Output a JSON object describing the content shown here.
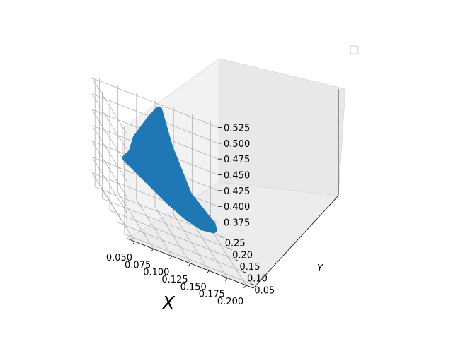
{
  "chart_data": {
    "type": "scatter",
    "projection": "3d",
    "title": "",
    "xlabel": "X",
    "ylabel": "Y",
    "zlabel": "",
    "xlim": [
      0.04,
      0.21
    ],
    "ylim": [
      0.03,
      0.27
    ],
    "zlim": [
      0.36,
      0.53
    ],
    "xticks": [
      "0.050",
      "0.075",
      "0.100",
      "0.125",
      "0.150",
      "0.175",
      "0.200"
    ],
    "yticks": [
      "0.05",
      "0.10",
      "0.15",
      "0.20",
      "0.25"
    ],
    "zticks": [
      "0.375",
      "0.400",
      "0.425",
      "0.450",
      "0.475",
      "0.500",
      "0.525"
    ],
    "series": [
      {
        "color": "#1f77b4",
        "description_points": [
          {
            "x": 0.05,
            "y": 0.09,
            "z": 0.47
          },
          {
            "x": 0.06,
            "y": 0.1,
            "z": 0.48
          },
          {
            "x": 0.07,
            "y": 0.12,
            "z": 0.5
          },
          {
            "x": 0.1,
            "y": 0.18,
            "z": 0.52
          },
          {
            "x": 0.12,
            "y": 0.22,
            "z": 0.53
          },
          {
            "x": 0.14,
            "y": 0.25,
            "z": 0.47
          },
          {
            "x": 0.17,
            "y": 0.27,
            "z": 0.4
          },
          {
            "x": 0.2,
            "y": 0.26,
            "z": 0.37
          },
          {
            "x": 0.19,
            "y": 0.2,
            "z": 0.38
          },
          {
            "x": 0.16,
            "y": 0.12,
            "z": 0.4
          },
          {
            "x": 0.13,
            "y": 0.07,
            "z": 0.42
          },
          {
            "x": 0.1,
            "y": 0.05,
            "z": 0.44
          }
        ]
      }
    ],
    "legend": {
      "placement": "top-right",
      "entries": []
    },
    "grid": true
  }
}
